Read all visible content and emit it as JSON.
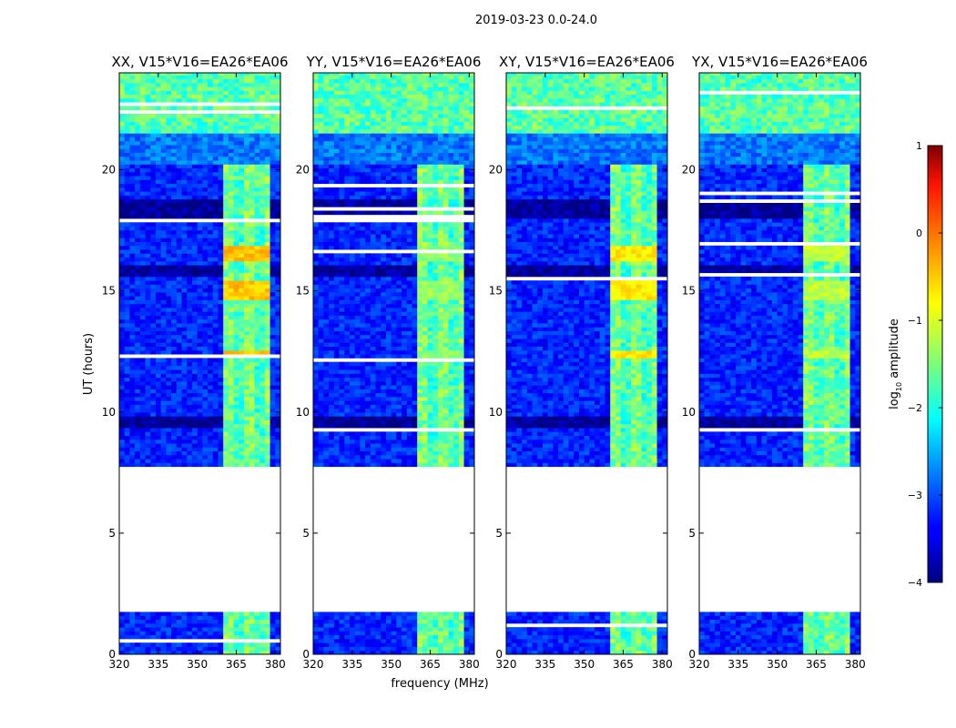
{
  "chart_data": {
    "type": "heatmap",
    "suptitle": "2019-03-23 0.0-24.0",
    "xlabel": "frequency (MHz)",
    "ylabel": "UT (hours)",
    "xlim": [
      320,
      382
    ],
    "ylim": [
      0,
      24
    ],
    "xticks": [
      "320",
      "335",
      "350",
      "365",
      "380"
    ],
    "xtick_values": [
      320,
      335,
      350,
      365,
      380
    ],
    "yticks": [
      "0",
      "5",
      "10",
      "15",
      "20"
    ],
    "ytick_values": [
      0,
      5,
      10,
      15,
      20
    ],
    "colorbar": {
      "label": "log10 amplitude",
      "label_base": "log",
      "label_sub": "10",
      "label_rest": " amplitude",
      "range": [
        -4,
        1
      ],
      "ticks": [
        "1",
        "0",
        "−1",
        "−2",
        "−3",
        "−4"
      ],
      "tick_values": [
        1,
        0,
        -1,
        -2,
        -3,
        -4
      ],
      "colormap": "jet"
    },
    "panels": [
      {
        "title": "XX, V15*V16=EA26*EA06",
        "bright_level": -0.6
      },
      {
        "title": "YY, V15*V16=EA26*EA06",
        "bright_level": -1.4
      },
      {
        "title": "XY, V15*V16=EA26*EA06",
        "bright_level": -0.8
      },
      {
        "title": "YX, V15*V16=EA26*EA06",
        "bright_level": -1.2
      }
    ],
    "data_coverage_hours": [
      [
        0,
        1.75
      ],
      [
        7.75,
        24
      ]
    ],
    "background_level": -3.2,
    "rfi_band_mhz": [
      359,
      378
    ],
    "rfi_level": -1.8,
    "late_band_hours": [
      21.5,
      24
    ],
    "late_band_level": -1.7
  }
}
